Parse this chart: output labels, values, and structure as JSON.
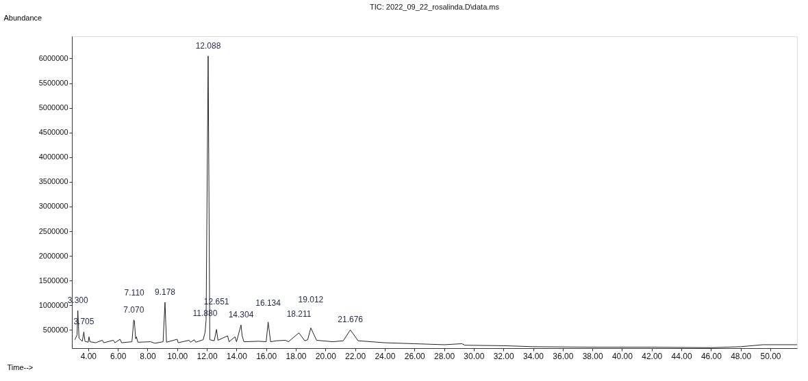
{
  "chart_data": {
    "type": "line",
    "title": "TIC: 2022_09_22_rosalinda.D\\data.ms",
    "xlabel": "Time-->",
    "ylabel": "Abundance",
    "xlim": [
      2.9,
      51.8
    ],
    "ylim": [
      130000,
      6450000
    ],
    "xticks": [
      {
        "value": 4,
        "label": "4.00"
      },
      {
        "value": 6,
        "label": "6.00"
      },
      {
        "value": 8,
        "label": "8.00"
      },
      {
        "value": 10,
        "label": "10.00"
      },
      {
        "value": 12,
        "label": "12.00"
      },
      {
        "value": 14,
        "label": "14.00"
      },
      {
        "value": 16,
        "label": "16.00"
      },
      {
        "value": 18,
        "label": "18.00"
      },
      {
        "value": 20,
        "label": "20.00"
      },
      {
        "value": 22,
        "label": "22.00"
      },
      {
        "value": 24,
        "label": "24.00"
      },
      {
        "value": 26,
        "label": "26.00"
      },
      {
        "value": 28,
        "label": "28.00"
      },
      {
        "value": 30,
        "label": "30.00"
      },
      {
        "value": 32,
        "label": "32.00"
      },
      {
        "value": 34,
        "label": "34.00"
      },
      {
        "value": 36,
        "label": "36.00"
      },
      {
        "value": 38,
        "label": "38.00"
      },
      {
        "value": 40,
        "label": "40.00"
      },
      {
        "value": 42,
        "label": "42.00"
      },
      {
        "value": 44,
        "label": "44.00"
      },
      {
        "value": 46,
        "label": "46.00"
      },
      {
        "value": 48,
        "label": "48.00"
      },
      {
        "value": 50,
        "label": "50.00"
      }
    ],
    "yticks": [
      500000,
      1000000,
      1500000,
      2000000,
      2500000,
      3000000,
      3500000,
      4000000,
      4500000,
      5000000,
      5500000,
      6000000
    ],
    "grid": false,
    "marker": "none",
    "line_style": "solid",
    "x": [
      3.1,
      3.25,
      3.3,
      3.38,
      3.6,
      3.705,
      3.78,
      4.0,
      4.05,
      4.12,
      4.5,
      4.95,
      5.05,
      5.7,
      5.8,
      6.15,
      6.25,
      6.95,
      7.07,
      7.11,
      7.2,
      7.25,
      7.35,
      8.2,
      8.5,
      9.05,
      9.178,
      9.28,
      10.0,
      10.07,
      10.8,
      10.9,
      11.15,
      11.25,
      11.75,
      11.88,
      11.95,
      12.088,
      12.2,
      12.5,
      12.651,
      12.75,
      13.4,
      13.5,
      13.9,
      14.0,
      14.304,
      14.38,
      14.5,
      15.5,
      16.0,
      16.134,
      16.3,
      16.7,
      17.3,
      17.5,
      18.21,
      18.6,
      18.8,
      19.012,
      19.4,
      20.5,
      21.2,
      21.676,
      22.2,
      24,
      26,
      28,
      29.2,
      29.4,
      32,
      34,
      38,
      42,
      46,
      48,
      49.5,
      51.8
    ],
    "series": [
      {
        "color": "#222222",
        "values": [
          300000,
          400000,
          890000,
          330000,
          270000,
          460000,
          270000,
          250000,
          360000,
          260000,
          240000,
          290000,
          240000,
          290000,
          240000,
          310000,
          240000,
          260000,
          700000,
          690000,
          320000,
          360000,
          250000,
          260000,
          230000,
          260000,
          1060000,
          250000,
          310000,
          240000,
          290000,
          250000,
          300000,
          250000,
          300000,
          450000,
          700000,
          6050000,
          300000,
          280000,
          510000,
          290000,
          380000,
          260000,
          360000,
          260000,
          600000,
          380000,
          260000,
          270000,
          260000,
          660000,
          260000,
          280000,
          290000,
          260000,
          440000,
          280000,
          300000,
          540000,
          290000,
          260000,
          280000,
          500000,
          280000,
          240000,
          220000,
          200000,
          220000,
          190000,
          180000,
          160000,
          150000,
          150000,
          140000,
          160000,
          200000,
          200000
        ]
      }
    ],
    "annotations": [
      {
        "text": "3.300",
        "x": 3.3,
        "y": 890000
      },
      {
        "text": "3.705",
        "x": 3.705,
        "y": 460000
      },
      {
        "text": "7.070",
        "x": 7.07,
        "y": 700000
      },
      {
        "text": "7.110",
        "x": 7.11,
        "y": 690000
      },
      {
        "text": "9.178",
        "x": 9.178,
        "y": 1060000
      },
      {
        "text": "11.880",
        "x": 11.88,
        "y": 450000
      },
      {
        "text": "12.088",
        "x": 12.088,
        "y": 6050000
      },
      {
        "text": "12.651",
        "x": 12.651,
        "y": 510000
      },
      {
        "text": "14.304",
        "x": 14.304,
        "y": 600000
      },
      {
        "text": "16.134",
        "x": 16.134,
        "y": 660000
      },
      {
        "text": "18.211",
        "x": 18.21,
        "y": 440000
      },
      {
        "text": "19.012",
        "x": 19.012,
        "y": 540000
      },
      {
        "text": "21.676",
        "x": 21.676,
        "y": 500000
      }
    ]
  }
}
